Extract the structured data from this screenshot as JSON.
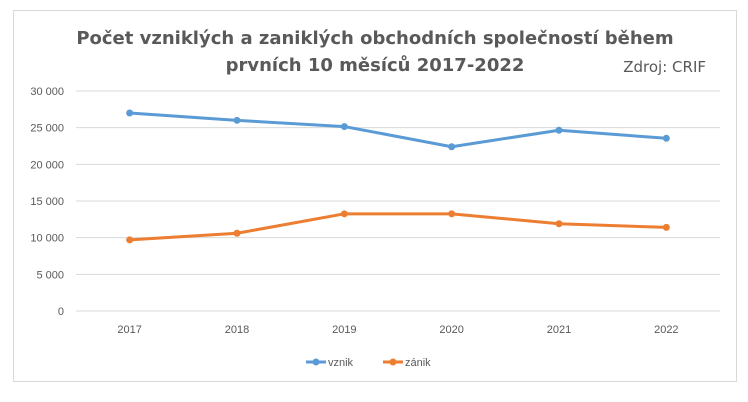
{
  "chart_data": {
    "type": "line",
    "title_line1": "Počet vzniklých a zaniklých obchodních společností během",
    "title_line2": "prvních 10 měsíců 2017-2022",
    "source": "Zdroj: CRIF",
    "categories": [
      "2017",
      "2018",
      "2019",
      "2020",
      "2021",
      "2022"
    ],
    "ylim": [
      0,
      30000
    ],
    "yticks": [
      0,
      5000,
      10000,
      15000,
      20000,
      25000,
      30000
    ],
    "ytick_labels": [
      "0",
      "5 000",
      "10 000",
      "15 000",
      "20 000",
      "25 000",
      "30 000"
    ],
    "grid": true,
    "legend_position": "bottom",
    "series": [
      {
        "name": "vznik",
        "color": "#5b9bd5",
        "values": [
          27000,
          26000,
          25150,
          22400,
          24650,
          23550
        ]
      },
      {
        "name": "zánik",
        "color": "#ed7d31",
        "values": [
          9700,
          10600,
          13250,
          13250,
          11900,
          11400
        ]
      }
    ]
  }
}
